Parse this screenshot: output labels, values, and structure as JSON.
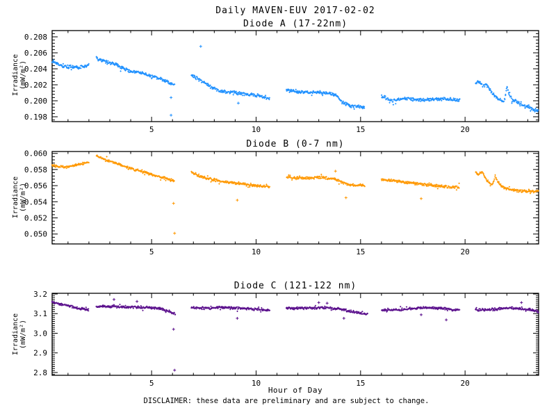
{
  "header": {
    "title": "Daily MAVEN-EUV 2017-02-02"
  },
  "footer": {
    "disclaimer": "DISCLAIMER: these data are preliminary and are subject to change."
  },
  "chart_data": {
    "type": "scatter",
    "xlabel": "Hour of Day",
    "xlim": [
      0.24,
      23.52
    ],
    "xticks": [
      5,
      10,
      15,
      20
    ],
    "xminor_step": 1,
    "frame_color": "#000000",
    "background": "#ffffff",
    "marker": "plus",
    "panels": [
      {
        "title": "Diode A (17-22nm)",
        "ylabel1": "Irradiance",
        "ylabel2": "(mW/m²)",
        "color": "#1e90ff",
        "ylim": [
          0.19739,
          0.20878
        ],
        "yticks": [
          0.198,
          0.2,
          0.202,
          0.204,
          0.206,
          0.208
        ],
        "ytick_labels": [
          "0.198",
          "0.200",
          "0.202",
          "0.204",
          "0.206",
          "0.208"
        ],
        "yminor_step": 0.0004,
        "noise": 0.00024,
        "segments": [
          {
            "x": [
              0.24,
              0.7,
              1.2,
              1.7,
              2.0
            ],
            "y": [
              0.2049,
              0.2044,
              0.2042,
              0.2042,
              0.2045
            ]
          },
          {
            "x": [
              2.35,
              2.8,
              3.2,
              3.7,
              4.1,
              4.5,
              5.0,
              5.3,
              5.7,
              6.1
            ],
            "y": [
              0.2053,
              0.2049,
              0.2046,
              0.204,
              0.2036,
              0.2035,
              0.203,
              0.2029,
              0.2024,
              0.202
            ]
          },
          {
            "x": [
              6.9,
              7.3,
              7.8,
              8.3,
              9.0,
              9.7,
              10.2,
              10.65
            ],
            "y": [
              0.2032,
              0.2026,
              0.2018,
              0.2012,
              0.201,
              0.2008,
              0.2006,
              0.2002
            ]
          },
          {
            "x": [
              11.45,
              12.3,
              13.2,
              13.8,
              14.1,
              14.6,
              15.2
            ],
            "y": [
              0.2013,
              0.2011,
              0.201,
              0.2008,
              0.1998,
              0.1993,
              0.1992
            ]
          },
          {
            "x": [
              16.0,
              16.5,
              17.2,
              17.8,
              18.5,
              19.2,
              19.75
            ],
            "y": [
              0.2006,
              0.2,
              0.2003,
              0.2001,
              0.2002,
              0.2002,
              0.2001
            ]
          },
          {
            "x": [
              20.5,
              20.65,
              20.85,
              21.05,
              21.3,
              21.6,
              21.85,
              21.95,
              22.0,
              22.1,
              22.25,
              22.5,
              22.9,
              23.2,
              23.52
            ],
            "y": [
              0.2021,
              0.2024,
              0.2018,
              0.2021,
              0.2009,
              0.2002,
              0.1998,
              0.2008,
              0.2019,
              0.2008,
              0.2002,
              0.1998,
              0.1993,
              0.199,
              0.1987
            ]
          }
        ],
        "outliers": [
          [
            5.93,
            0.2004
          ],
          [
            5.93,
            0.1982
          ],
          [
            7.35,
            0.2068
          ],
          [
            9.15,
            0.1997
          ]
        ]
      },
      {
        "title": "Diode B (0-7 nm)",
        "ylabel1": "Irradiance",
        "ylabel2": "(mW/m²)",
        "color": "#ff9800",
        "ylim": [
          0.04877,
          0.06023
        ],
        "yticks": [
          0.05,
          0.052,
          0.054,
          0.056,
          0.058,
          0.06
        ],
        "ytick_labels": [
          "0.050",
          "0.052",
          "0.054",
          "0.056",
          "0.058",
          "0.060"
        ],
        "yminor_step": 0.0004,
        "noise": 0.0002,
        "segments": [
          {
            "x": [
              0.24,
              0.6,
              1.0,
              1.5,
              2.0
            ],
            "y": [
              0.0585,
              0.0583,
              0.0583,
              0.0586,
              0.0589
            ]
          },
          {
            "x": [
              2.35,
              2.8,
              3.3,
              3.9,
              4.5,
              5.0,
              5.5,
              6.1
            ],
            "y": [
              0.0597,
              0.0592,
              0.0588,
              0.0582,
              0.0578,
              0.0574,
              0.057,
              0.0566
            ]
          },
          {
            "x": [
              6.9,
              7.4,
              8.0,
              8.7,
              9.4,
              10.0,
              10.65
            ],
            "y": [
              0.0576,
              0.0571,
              0.0567,
              0.0564,
              0.0562,
              0.056,
              0.0558
            ]
          },
          {
            "x": [
              11.45,
              12.2,
              13.0,
              13.6,
              14.0,
              14.4,
              15.2
            ],
            "y": [
              0.057,
              0.0569,
              0.057,
              0.0569,
              0.0566,
              0.0561,
              0.056
            ]
          },
          {
            "x": [
              16.0,
              16.6,
              17.4,
              18.2,
              19.0,
              19.75
            ],
            "y": [
              0.0568,
              0.0566,
              0.0563,
              0.0561,
              0.0559,
              0.0558
            ]
          },
          {
            "x": [
              20.5,
              20.62,
              20.8,
              21.05,
              21.3,
              21.45,
              21.55,
              21.75,
              22.0,
              22.4,
              22.9,
              23.52
            ],
            "y": [
              0.0576,
              0.0573,
              0.0578,
              0.0566,
              0.0561,
              0.0572,
              0.0565,
              0.0559,
              0.0556,
              0.0554,
              0.0553,
              0.0553
            ]
          }
        ],
        "outliers": [
          [
            6.05,
            0.0538
          ],
          [
            6.1,
            0.0501
          ],
          [
            9.1,
            0.0542
          ],
          [
            13.8,
            0.0578
          ],
          [
            14.3,
            0.0545
          ],
          [
            17.9,
            0.0544
          ]
        ]
      },
      {
        "title": "Diode C (121-122 nm)",
        "ylabel1": "Irradiance",
        "ylabel2": "(mW/m²)",
        "color": "#5a0f8c",
        "ylim": [
          2.7858,
          3.2035
        ],
        "yticks": [
          2.8,
          2.9,
          3.0,
          3.1,
          3.2
        ],
        "ytick_labels": [
          "2.8",
          "2.9",
          "3.0",
          "3.1",
          "3.2"
        ],
        "yminor_step": 0.01,
        "noise": 0.0075,
        "segments": [
          {
            "x": [
              0.24,
              0.6,
              1.0,
              1.5,
              2.0
            ],
            "y": [
              3.158,
              3.15,
              3.14,
              3.128,
              3.118
            ]
          },
          {
            "x": [
              2.35,
              3.0,
              3.8,
              4.6,
              5.3,
              5.8,
              6.15
            ],
            "y": [
              3.138,
              3.136,
              3.134,
              3.132,
              3.128,
              3.112,
              3.098
            ]
          },
          {
            "x": [
              6.9,
              7.5,
              8.3,
              9.2,
              10.0,
              10.65
            ],
            "y": [
              3.13,
              3.128,
              3.132,
              3.128,
              3.122,
              3.115
            ]
          },
          {
            "x": [
              11.45,
              12.2,
              13.0,
              13.6,
              14.2,
              14.8,
              15.35
            ],
            "y": [
              3.126,
              3.128,
              3.13,
              3.128,
              3.12,
              3.106,
              3.094
            ]
          },
          {
            "x": [
              16.0,
              16.8,
              17.5,
              18.2,
              18.9,
              19.4,
              19.75
            ],
            "y": [
              3.12,
              3.118,
              3.126,
              3.13,
              3.127,
              3.12,
              3.117
            ]
          },
          {
            "x": [
              20.5,
              21.2,
              21.9,
              22.5,
              23.0,
              23.3,
              23.52
            ],
            "y": [
              3.118,
              3.12,
              3.128,
              3.126,
              3.122,
              3.118,
              3.11
            ]
          }
        ],
        "outliers": [
          [
            3.2,
            3.172
          ],
          [
            4.3,
            3.162
          ],
          [
            6.05,
            3.02
          ],
          [
            6.1,
            2.812
          ],
          [
            9.1,
            3.076
          ],
          [
            13.0,
            3.156
          ],
          [
            13.4,
            3.153
          ],
          [
            14.2,
            3.076
          ],
          [
            17.9,
            3.094
          ],
          [
            19.1,
            3.068
          ],
          [
            22.7,
            3.156
          ]
        ]
      }
    ]
  }
}
